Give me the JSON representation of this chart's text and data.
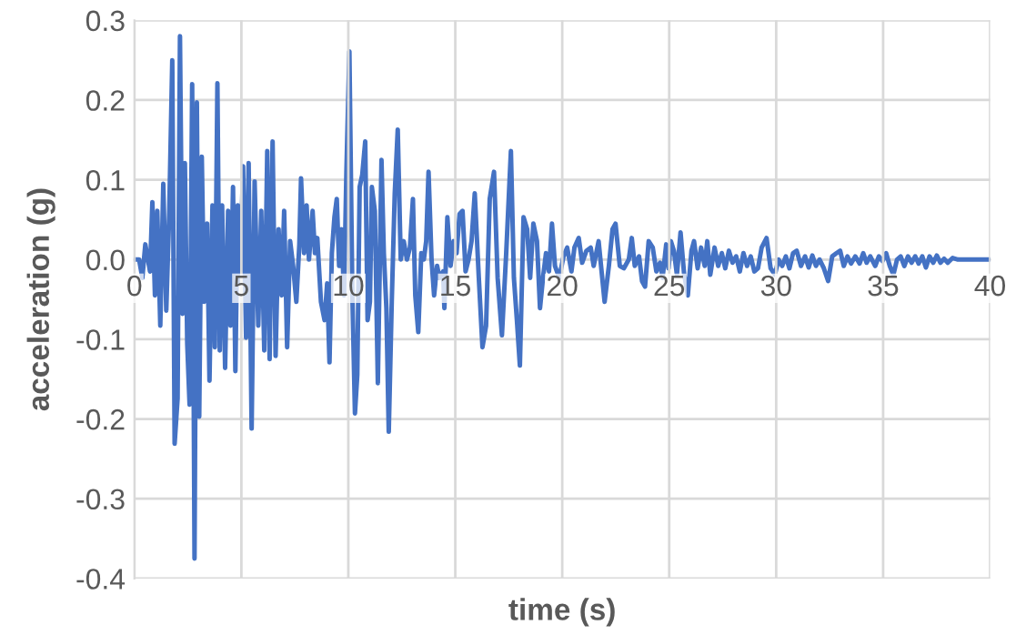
{
  "chart_data": {
    "type": "line",
    "xlabel": "time (s)",
    "ylabel": "acceleration (g)",
    "xlim": [
      0,
      40
    ],
    "ylim": [
      -0.4,
      0.3
    ],
    "xticks": [
      0,
      5,
      10,
      15,
      20,
      25,
      30,
      35,
      40
    ],
    "yticks": [
      -0.4,
      -0.3,
      -0.2,
      -0.1,
      {
        "value": 0,
        "label": "0.0"
      },
      0.1,
      0.2,
      0.3
    ],
    "grid": true,
    "marker": "none",
    "line_style": "solid",
    "series": [
      {
        "color": "#4472c4",
        "x": [
          0,
          0.22,
          0.37,
          0.51,
          0.73,
          0.84,
          0.96,
          1.07,
          1.21,
          1.35,
          1.49,
          1.63,
          1.77,
          1.88,
          2.02,
          2.13,
          2.25,
          2.36,
          2.47,
          2.58,
          2.7,
          2.81,
          2.92,
          3.03,
          3.15,
          3.26,
          3.4,
          3.51,
          3.65,
          3.76,
          3.88,
          3.99,
          4.1,
          4.24,
          4.38,
          4.49,
          4.61,
          4.72,
          4.83,
          4.94,
          5.08,
          5.22,
          5.34,
          5.48,
          5.62,
          5.79,
          5.93,
          6.07,
          6.21,
          6.32,
          6.46,
          6.6,
          6.74,
          6.88,
          7.0,
          7.14,
          7.28,
          7.42,
          7.57,
          7.71,
          7.79,
          7.93,
          8.05,
          8.16,
          8.33,
          8.44,
          8.55,
          8.72,
          8.89,
          9.01,
          9.12,
          9.23,
          9.35,
          9.46,
          9.57,
          9.68,
          9.8,
          9.91,
          10.05,
          10.19,
          10.31,
          10.42,
          10.53,
          10.65,
          10.79,
          10.9,
          11.01,
          11.1,
          11.24,
          11.38,
          11.55,
          11.66,
          11.78,
          11.89,
          12.03,
          12.17,
          12.31,
          12.45,
          12.59,
          12.74,
          12.88,
          13.02,
          13.13,
          13.27,
          13.41,
          13.53,
          13.64,
          13.75,
          13.89,
          14.01,
          14.15,
          14.26,
          14.43,
          14.49,
          14.63,
          14.78,
          14.92,
          15.06,
          15.2,
          15.34,
          15.48,
          15.62,
          15.76,
          15.91,
          16.1,
          16.27,
          16.44,
          16.61,
          16.81,
          16.98,
          17.18,
          17.38,
          17.6,
          17.74,
          17.88,
          18.02,
          18.19,
          18.36,
          18.5,
          18.65,
          18.82,
          18.96,
          19.1,
          19.24,
          19.38,
          19.52,
          19.66,
          19.86,
          20.06,
          20.23,
          20.43,
          20.57,
          20.77,
          20.93,
          21.13,
          21.33,
          21.47,
          21.7,
          21.84,
          21.98,
          22.18,
          22.35,
          22.49,
          22.69,
          22.88,
          23.11,
          23.25,
          23.39,
          23.59,
          23.73,
          23.87,
          24.04,
          24.23,
          24.4,
          24.57,
          24.69,
          24.86,
          24.97,
          25.08,
          25.22,
          25.36,
          25.53,
          25.7,
          25.87,
          26.04,
          26.16,
          26.33,
          26.49,
          26.66,
          26.78,
          26.92,
          27.12,
          27.29,
          27.46,
          27.62,
          27.79,
          27.96,
          28.13,
          28.3,
          28.47,
          28.64,
          28.81,
          28.98,
          29.15,
          29.32,
          29.55,
          29.74,
          29.94,
          30.11,
          30.28,
          30.45,
          30.62,
          30.79,
          30.96,
          31.16,
          31.35,
          31.52,
          31.69,
          31.86,
          32.03,
          32.23,
          32.43,
          32.62,
          32.82,
          32.99,
          33.16,
          33.33,
          33.5,
          33.7,
          33.9,
          34.07,
          34.23,
          34.4,
          34.63,
          34.8,
          34.97,
          35.14,
          35.31,
          35.48,
          35.65,
          35.82,
          35.99,
          36.16,
          36.33,
          36.5,
          36.66,
          36.83,
          37.0,
          37.17,
          37.34,
          37.51,
          37.68,
          37.85,
          38.02,
          38.25,
          38.5,
          40
        ],
        "values": [
          0,
          0,
          -0.023,
          0.019,
          -0.015,
          0.072,
          -0.045,
          0.061,
          -0.083,
          0.095,
          -0.064,
          0.061,
          0.25,
          -0.231,
          -0.174,
          0.28,
          -0.068,
          0.121,
          -0.106,
          -0.182,
          0.22,
          -0.375,
          0.197,
          -0.197,
          0.129,
          -0.053,
          0.045,
          -0.152,
          0.068,
          -0.11,
          0.221,
          -0.114,
          0.068,
          -0.136,
          0.061,
          -0.083,
          0.091,
          -0.14,
          0.068,
          -0.03,
          0.117,
          -0.098,
          0.121,
          -0.212,
          0.098,
          -0.083,
          0.061,
          -0.114,
          0.136,
          -0.125,
          0.148,
          -0.121,
          0.038,
          -0.045,
          0.061,
          -0.11,
          0.023,
          -0.008,
          -0.053,
          0.019,
          0.102,
          0.008,
          0.068,
          0,
          0.061,
          0.008,
          0.027,
          -0.053,
          -0.076,
          -0.03,
          -0.129,
          0.008,
          0.053,
          0.076,
          -0.008,
          0.038,
          -0.045,
          0.11,
          0.261,
          -0.045,
          -0.193,
          -0.144,
          0.091,
          0.106,
          0.148,
          -0.076,
          -0.053,
          0.091,
          0.061,
          -0.155,
          0.125,
          0.008,
          -0.061,
          -0.216,
          -0.053,
          0.083,
          0.163,
          0,
          0.023,
          0,
          0.015,
          0.076,
          -0.045,
          -0.091,
          0.008,
          0,
          0.023,
          0.11,
          0,
          -0.045,
          -0.008,
          -0.023,
          -0.015,
          -0.061,
          0.053,
          -0.008,
          0.023,
          0.008,
          0.057,
          0.061,
          -0.015,
          0,
          0.023,
          0.083,
          -0.023,
          -0.11,
          -0.083,
          0.076,
          0.11,
          -0.023,
          -0.095,
          0.008,
          0.136,
          -0.023,
          -0.076,
          -0.133,
          0.053,
          0.038,
          -0.023,
          0.045,
          0.023,
          -0.061,
          -0.023,
          0.008,
          -0.015,
          0.045,
          -0.008,
          -0.023,
          0.004,
          0.015,
          -0.015,
          0.015,
          0.027,
          -0.004,
          0.011,
          0.015,
          -0.008,
          0.023,
          -0.015,
          -0.053,
          -0.008,
          0.038,
          0.045,
          -0.008,
          -0.011,
          0,
          0.027,
          -0.008,
          0.004,
          -0.027,
          -0.034,
          0.023,
          0.015,
          -0.015,
          -0.004,
          -0.023,
          0.019,
          -0.011,
          0.023,
          0.011,
          -0.019,
          0.034,
          -0.019,
          -0.045,
          0.011,
          0.023,
          -0.011,
          0.015,
          -0.008,
          0.023,
          -0.019,
          0.015,
          -0.008,
          0.008,
          -0.011,
          0.011,
          -0.004,
          0.004,
          -0.015,
          0.008,
          -0.008,
          0.004,
          -0.015,
          -0.011,
          0.015,
          0.027,
          -0.011,
          -0.019,
          0,
          -0.008,
          0.004,
          -0.011,
          0.008,
          0.011,
          -0.008,
          0.004,
          -0.01,
          0.005,
          -0.008,
          0,
          -0.011,
          -0.027,
          0.004,
          0.008,
          0.011,
          -0.008,
          0.004,
          -0.005,
          0.004,
          -0.005,
          0.008,
          -0.004,
          0.004,
          -0.008,
          0.004,
          -0.002,
          0.008,
          -0.008,
          -0.019,
          0,
          0.004,
          -0.008,
          0.004,
          -0.004,
          0.004,
          -0.005,
          0.004,
          -0.01,
          0.004,
          -0.004,
          0.005,
          -0.004,
          0.001,
          -0.004,
          0.002,
          0,
          0
        ]
      }
    ]
  }
}
